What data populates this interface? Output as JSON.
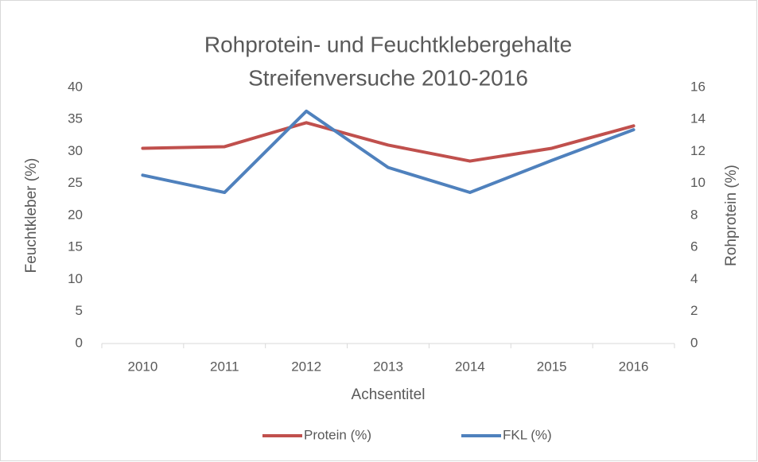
{
  "chart_data": {
    "type": "line",
    "title": [
      "Rohprotein- und Feuchtklebergehalte",
      "Streifenversuche 2010-2016"
    ],
    "x_label": "Achsentitel",
    "y_label": "Feuchtkleber (%)",
    "y2_label": "Rohprotein (%)",
    "categories": [
      "2010",
      "2011",
      "2012",
      "2013",
      "2014",
      "2015",
      "2016"
    ],
    "series": [
      {
        "name": "Protein (%)",
        "color": "#c0504d",
        "axis": "y2",
        "values": [
          12.2,
          12.3,
          13.8,
          12.4,
          11.4,
          12.2,
          13.6
        ]
      },
      {
        "name": "FKL (%)",
        "color": "#4f81bd",
        "values": [
          26.3,
          23.6,
          36.3,
          27.5,
          23.6,
          28.6,
          33.4
        ]
      }
    ],
    "ylim": [
      0,
      40
    ],
    "yticks": [
      0,
      5,
      10,
      15,
      20,
      25,
      30,
      35,
      40
    ],
    "y2lim": [
      0,
      16
    ],
    "y2ticks": [
      0,
      2,
      4,
      6,
      8,
      10,
      12,
      14,
      16
    ],
    "legend": "bottom",
    "grid": false
  }
}
